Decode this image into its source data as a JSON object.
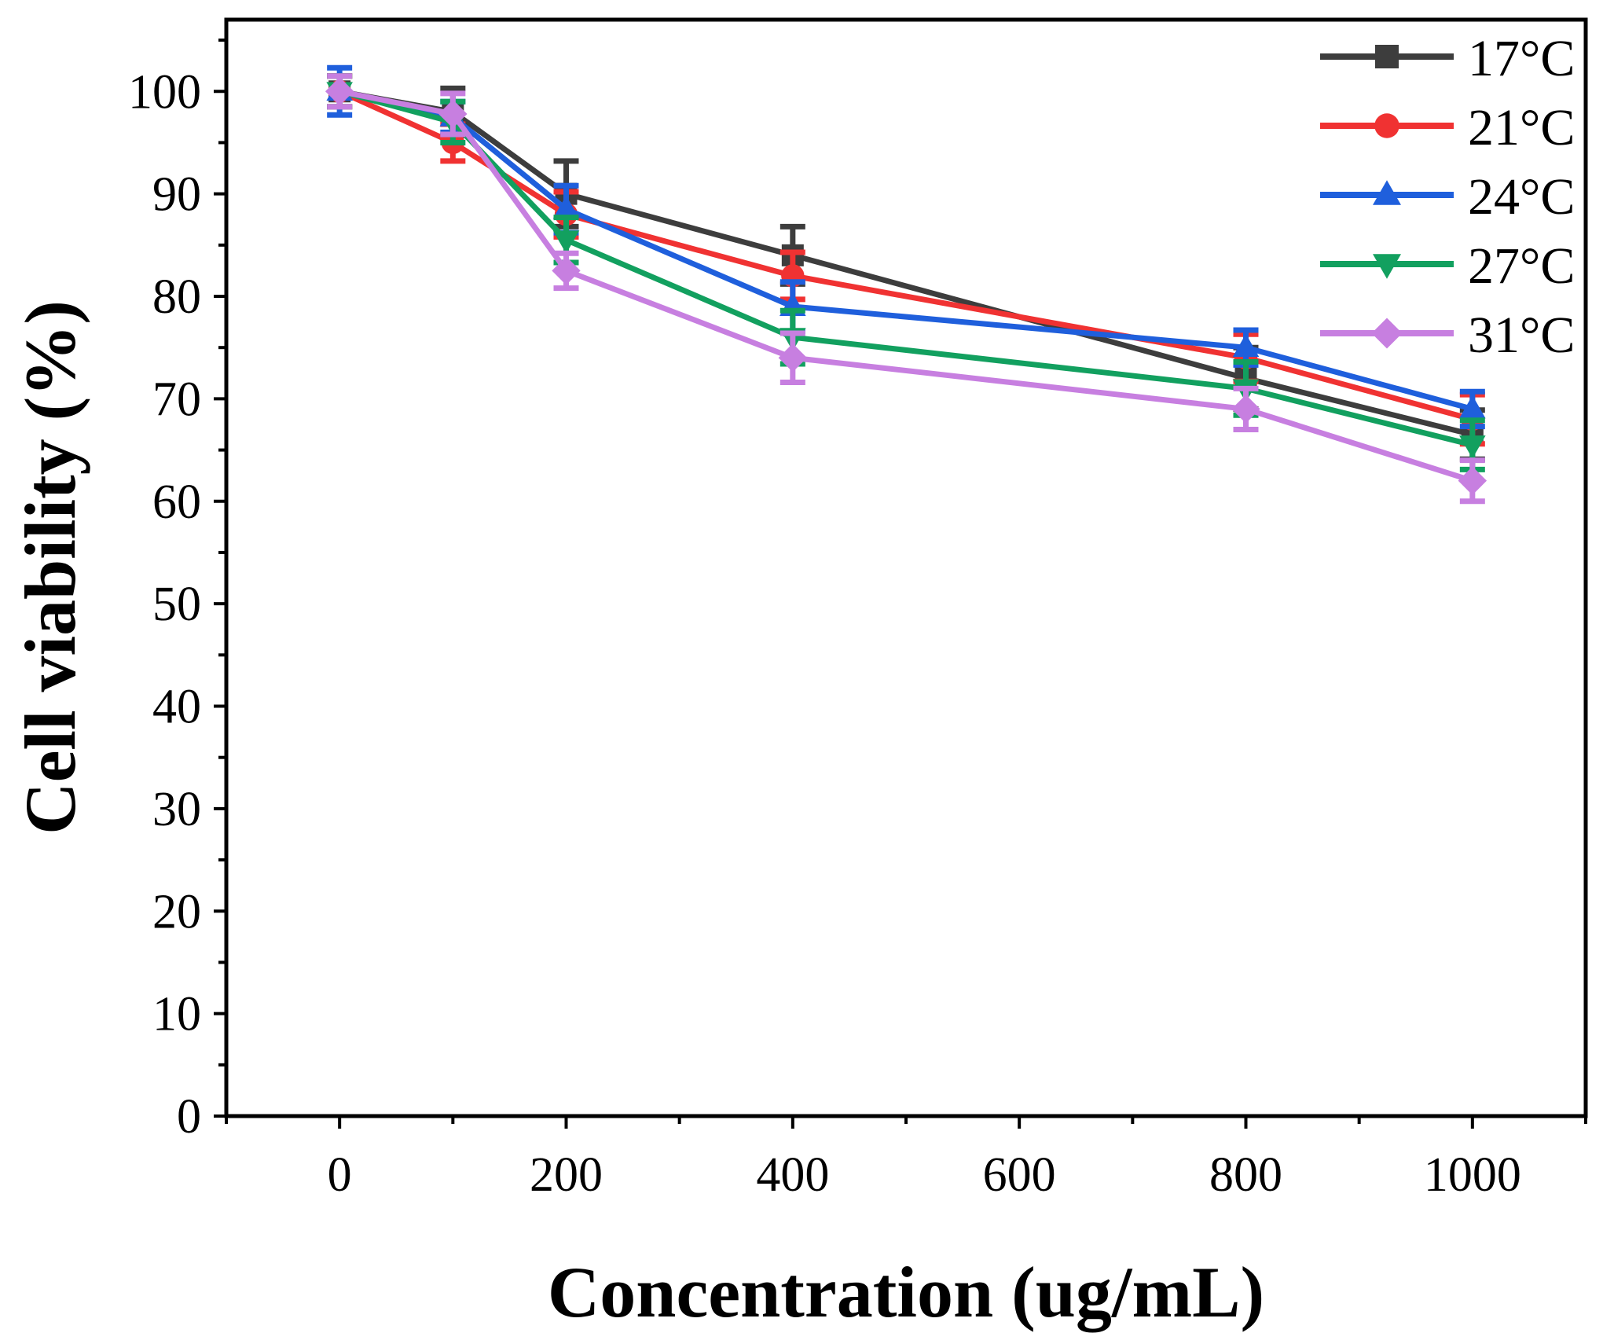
{
  "chart_data": {
    "type": "line",
    "title": "",
    "xlabel": "Concentration (ug/mL)",
    "ylabel": "Cell viability (%)",
    "xlim": [
      -100,
      1100
    ],
    "ylim": [
      0,
      107
    ],
    "xticks": [
      0,
      200,
      400,
      600,
      800,
      1000
    ],
    "xtick_labels": [
      "0",
      "200",
      "400",
      "600",
      "800",
      "1000"
    ],
    "xminor": [
      100,
      300,
      500,
      700,
      900,
      -100,
      1100
    ],
    "yticks": [
      0,
      10,
      20,
      30,
      40,
      50,
      60,
      70,
      80,
      90,
      100
    ],
    "ytick_labels": [
      "0",
      "10",
      "20",
      "30",
      "40",
      "50",
      "60",
      "70",
      "80",
      "90",
      "100"
    ],
    "yminor": [
      5,
      15,
      25,
      35,
      45,
      55,
      65,
      75,
      85,
      95,
      105
    ],
    "grid": false,
    "legend_position": "top-right",
    "x": [
      0,
      100,
      200,
      400,
      800,
      1000
    ],
    "series": [
      {
        "name": "17°C",
        "color": "#3d3d3d",
        "marker": "square",
        "values": [
          100,
          98,
          90,
          84,
          72,
          66.5
        ],
        "errors": [
          1.5,
          2.3,
          3.2,
          2.8,
          3.0,
          2.4
        ]
      },
      {
        "name": "21°C",
        "color": "#f03232",
        "marker": "circle",
        "values": [
          100,
          95,
          88,
          82,
          74,
          68
        ],
        "errors": [
          1.5,
          1.8,
          2.2,
          2.3,
          2.3,
          2.4
        ]
      },
      {
        "name": "24°C",
        "color": "#1f5fdc",
        "marker": "triangle-up",
        "values": [
          100,
          97.5,
          88.5,
          79,
          75,
          69
        ],
        "errors": [
          2.3,
          1.5,
          2.3,
          2.4,
          1.7,
          1.7
        ]
      },
      {
        "name": "27°C",
        "color": "#12a05f",
        "marker": "triangle-down",
        "values": [
          100,
          97,
          85.5,
          76,
          71,
          65.5
        ],
        "errors": [
          1.5,
          2.0,
          2.2,
          2.6,
          2.6,
          2.4
        ]
      },
      {
        "name": "31°C",
        "color": "#c77fe0",
        "marker": "diamond",
        "values": [
          100,
          97.8,
          82.5,
          74,
          69,
          62
        ],
        "errors": [
          1.5,
          2.0,
          1.7,
          2.4,
          2.0,
          2.0
        ]
      }
    ]
  }
}
